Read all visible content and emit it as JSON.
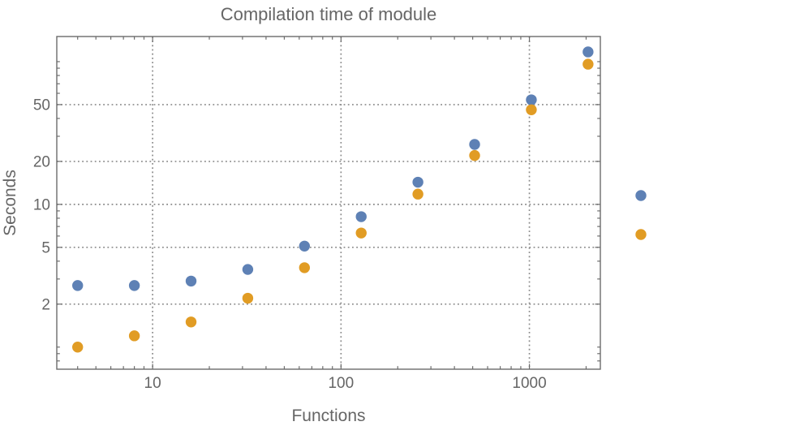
{
  "chart_data": {
    "type": "scatter",
    "title": "Compilation time of module",
    "xlabel": "Functions",
    "ylabel": "Seconds",
    "x_scale": "log",
    "y_scale": "log",
    "xlim": [
      3.1,
      2380
    ],
    "ylim": [
      0.7,
      150
    ],
    "grid": "dotted lines at labeled major ticks, on",
    "x_major_ticks": [
      {
        "value": 10,
        "label": "10"
      },
      {
        "value": 100,
        "label": "100"
      },
      {
        "value": 1000,
        "label": "1000"
      }
    ],
    "y_major_ticks": [
      {
        "value": 2,
        "label": "2"
      },
      {
        "value": 5,
        "label": "5"
      },
      {
        "value": 10,
        "label": "10"
      },
      {
        "value": 20,
        "label": "20"
      },
      {
        "value": 50,
        "label": "50"
      }
    ],
    "x": [
      4,
      8,
      16,
      32,
      64,
      128,
      256,
      512,
      1024,
      2048
    ],
    "series": [
      {
        "name": "blue",
        "color": "#5e81b5",
        "values": [
          2.7,
          2.7,
          2.9,
          3.5,
          5.1,
          8.2,
          14.3,
          26.3,
          54,
          117
        ]
      },
      {
        "name": "orange",
        "color": "#e19c24",
        "values": [
          1.0,
          1.2,
          1.5,
          2.2,
          3.6,
          6.3,
          11.8,
          22,
          46,
          96
        ]
      }
    ],
    "legend": {
      "position": "outside-right",
      "entries": [
        {
          "marker_color": "#5e81b5",
          "label": ""
        },
        {
          "marker_color": "#e19c24",
          "label": ""
        }
      ]
    }
  },
  "style": {
    "background": "#ffffff",
    "frame_color": "#6b6b6b",
    "grid_color": "#8a8a8a",
    "text_color": "#666666",
    "series_blue": "#5e81b5",
    "series_orange": "#e19c24"
  }
}
